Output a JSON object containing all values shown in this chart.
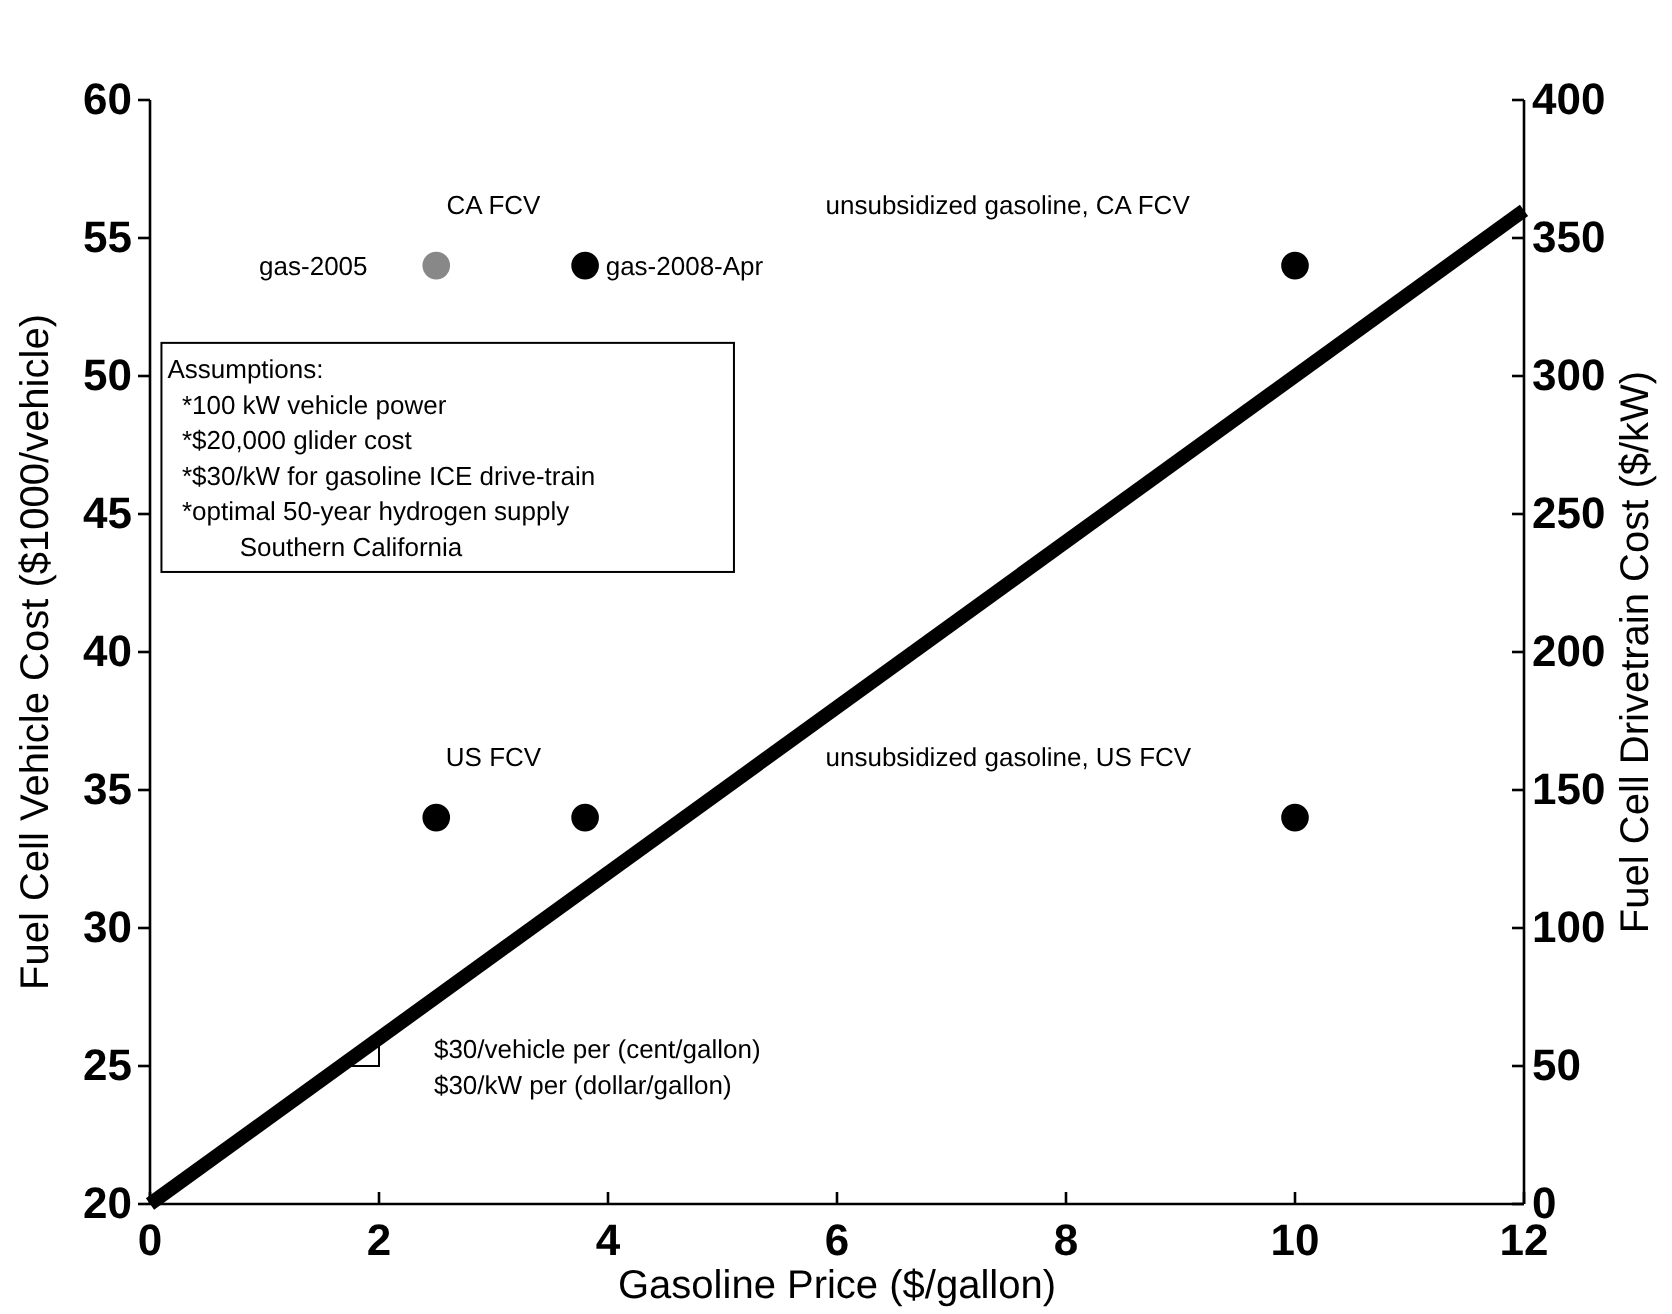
{
  "chart_data": {
    "type": "scatter",
    "xlabel": "Gasoline Price ($/gallon)",
    "ylabel": "Fuel Cell Vehicle Cost ($1000/vehicle)",
    "y2label": "Fuel Cell Drivetrain Cost ($/kW)",
    "xlim": [
      0,
      12
    ],
    "xticks": [
      0,
      2,
      4,
      6,
      8,
      10,
      12
    ],
    "ylim": [
      20,
      60
    ],
    "yticks": [
      20,
      25,
      30,
      35,
      40,
      45,
      50,
      55,
      60
    ],
    "y2lim": [
      0,
      400
    ],
    "y2ticks": [
      0,
      50,
      100,
      150,
      200,
      250,
      300,
      350,
      400
    ],
    "marker": "circle",
    "grid": false,
    "series": [
      {
        "type": "line",
        "marker": "none",
        "color": "#000000",
        "x": [
          0,
          12
        ],
        "values": [
          20,
          56
        ]
      },
      {
        "color": "#888888",
        "x": [
          2.5
        ],
        "values": [
          54
        ]
      },
      {
        "color": "#000000",
        "x": [
          3.8,
          10,
          2.5,
          3.8,
          10
        ],
        "values": [
          54,
          54,
          34,
          34,
          34
        ]
      }
    ],
    "annotations": [
      "CA FCV",
      "gas-2005",
      "gas-2008-Apr",
      "unsubsidized gasoline, CA FCV",
      "US FCV",
      "unsubsidized gasoline, US FCV",
      "Assumptions:\n  *100 kW vehicle power\n  *$20,000 glider cost\n  *$30/kW for gasoline ICE drive-train\n  *optimal 50-year hydrogen supply\n          Southern California",
      "$30/vehicle per (cent/gallon)\n$30/kW per (dollar/gallon)"
    ]
  }
}
